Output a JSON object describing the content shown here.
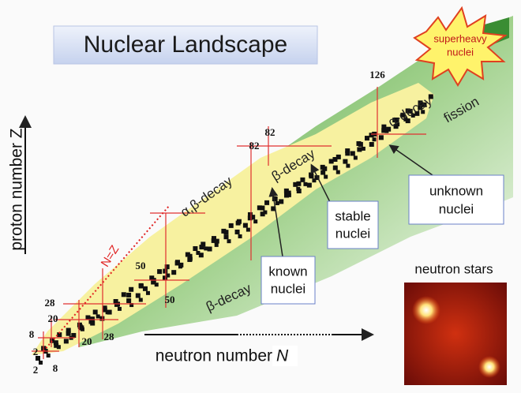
{
  "title": "Nuclear Landscape",
  "superheavy": [
    "superheavy",
    "nuclei"
  ],
  "axes": {
    "z_label": "proton number Z",
    "n_label": "neutron number",
    "n_symbol": "N"
  },
  "regions": {
    "alpha_decay": "α-decay",
    "fission": "fission",
    "beta_decay_upper": "β-decay",
    "alpha_beta_decay": "α,β-decay",
    "beta_decay_lower": "β-decay",
    "n_equals_z": "N=Z"
  },
  "callouts": {
    "stable": [
      "stable",
      "nuclei"
    ],
    "known": [
      "known",
      "nuclei"
    ],
    "unknown": [
      "unknown",
      "nuclei"
    ]
  },
  "neutron_stars": "neutron stars",
  "magic_z": [
    2,
    8,
    20,
    28,
    50,
    82,
    126
  ],
  "magic_n": [
    2,
    8,
    20,
    28,
    50,
    82
  ]
}
